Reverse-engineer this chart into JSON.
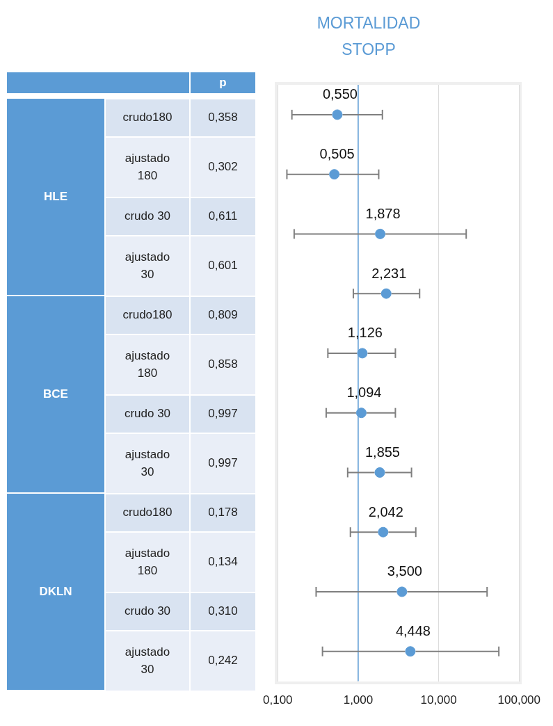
{
  "chart_data": [
    {
      "type": "other",
      "annotations": [
        "p",
        "HLE",
        "crudo180",
        "0,358",
        "ajustado 180",
        "0,302",
        "crudo 30",
        "0,611",
        "ajustado 30",
        "0,601",
        "BCE",
        "crudo180",
        "0,809",
        "ajustado 180",
        "0,858",
        "crudo 30",
        "0,997",
        "ajustado 30",
        "0,997",
        "DKLN",
        "crudo180",
        "0,178",
        "ajustado 180",
        "0,134",
        "crudo 30",
        "0,310",
        "ajustado 30",
        "0,242"
      ]
    },
    {
      "type": "scatter",
      "title": "MORTALIDAD STOPP",
      "orientation": "horizontal",
      "log": "x",
      "categories": [
        null,
        null,
        null,
        null,
        null,
        null,
        null,
        null,
        null,
        null
      ],
      "values": [
        0.55,
        0.505,
        1.878,
        2.231,
        1.126,
        1.094,
        1.855,
        2.042,
        3.5,
        4.448
      ],
      "value_labels": [
        "0,550",
        "0,505",
        "1,878",
        "2,231",
        "1,126",
        "1,094",
        "1,855",
        "2,042",
        "3,500",
        "4,448"
      ],
      "errors": [
        [
          0.15,
          2.0
        ],
        [
          0.13,
          1.8
        ],
        [
          0.16,
          22
        ],
        [
          0.87,
          5.8
        ],
        [
          0.42,
          2.9
        ],
        [
          0.4,
          2.9
        ],
        [
          0.74,
          4.6
        ],
        [
          0.8,
          5.2
        ],
        [
          0.3,
          40
        ],
        [
          0.36,
          56
        ]
      ],
      "color": "#5b9bd5",
      "marker": "circle",
      "xlim": [
        0.1,
        100
      ],
      "xticks": [
        {
          "value": 0.1,
          "label": "0,100"
        },
        {
          "value": 1,
          "label": "1,000"
        },
        {
          "value": 10,
          "label": "10,000"
        },
        {
          "value": 100,
          "label": "100,000"
        }
      ],
      "grid": "x",
      "ref_lines": [
        {
          "axis": "x",
          "value": 1,
          "color": "#5b9bd5"
        }
      ]
    }
  ]
}
